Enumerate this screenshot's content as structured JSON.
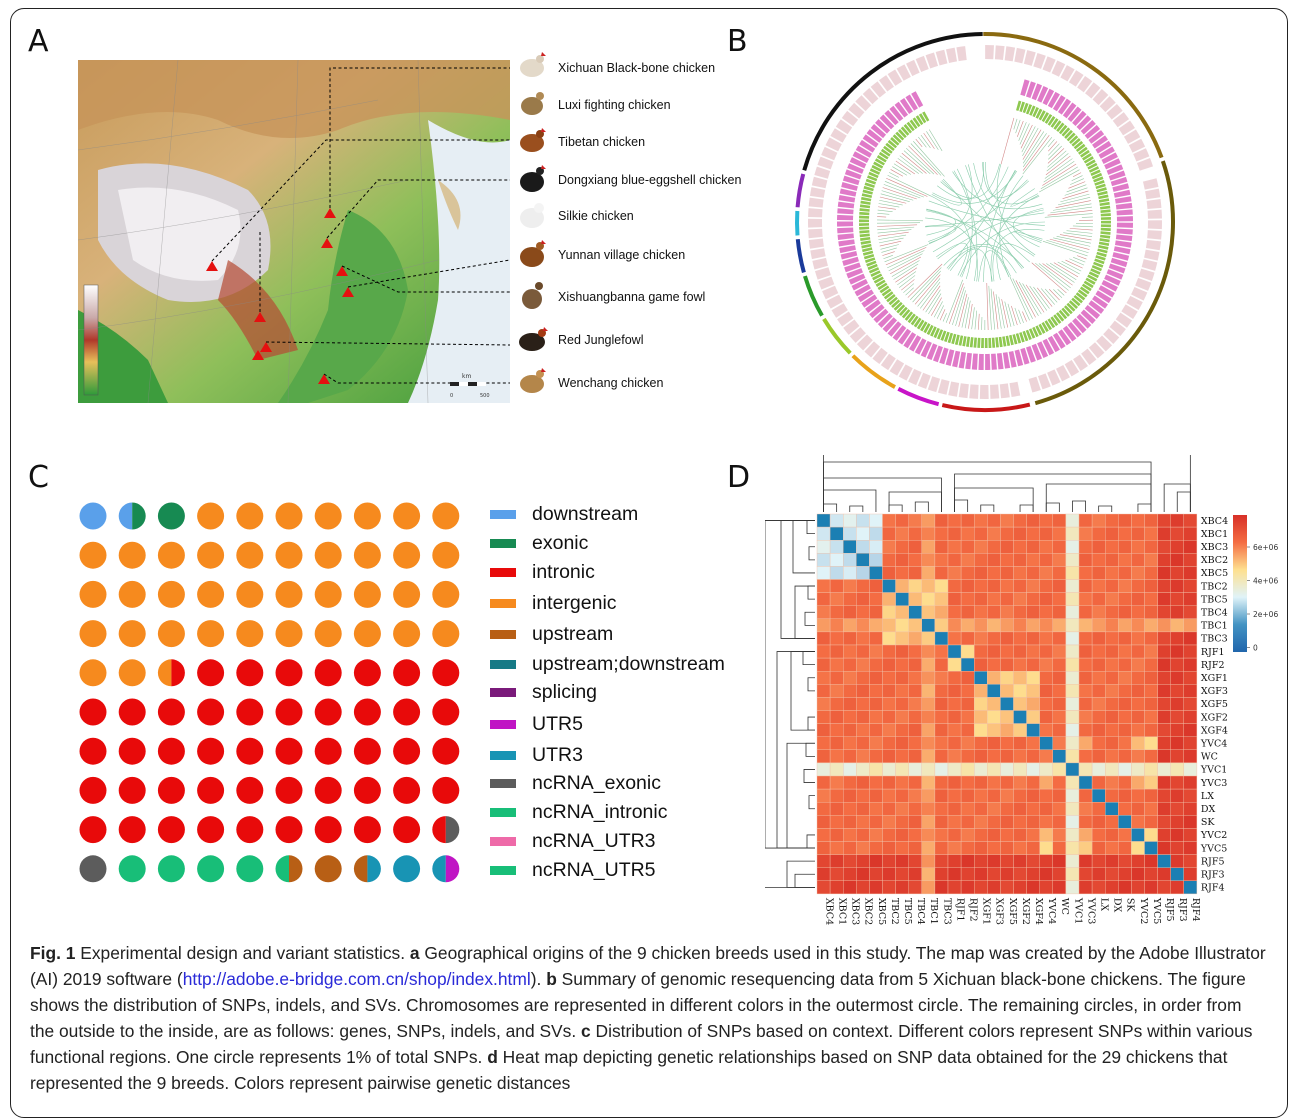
{
  "panels": {
    "a": "A",
    "b": "B",
    "c": "C",
    "d": "D"
  },
  "map": {
    "breeds": [
      "Xichuan Black-bone chicken",
      "Luxi fighting chicken",
      "Tibetan chicken",
      "Dongxiang blue-eggshell chicken",
      "Silkie chicken",
      "Yunnan village chicken",
      "Xishuangbanna game fowl",
      "Red Junglefowl",
      "Wenchang chicken"
    ],
    "scale_unit": "km",
    "scale_ticks": [
      "0",
      "500"
    ]
  },
  "waffle": {
    "legend": [
      {
        "label": "downstream",
        "color": "#5aa0ea"
      },
      {
        "label": "exonic",
        "color": "#178a52"
      },
      {
        "label": "intronic",
        "color": "#e80a0a"
      },
      {
        "label": "intergenic",
        "color": "#f68a1e"
      },
      {
        "label": "upstream",
        "color": "#b85f15"
      },
      {
        "label": "upstream;downstream",
        "color": "#167a86"
      },
      {
        "label": "splicing",
        "color": "#7a1a7a"
      },
      {
        "label": "UTR5",
        "color": "#c015c4"
      },
      {
        "label": "UTR3",
        "color": "#1894b4"
      },
      {
        "label": "ncRNA_exonic",
        "color": "#5c5c5c"
      },
      {
        "label": "ncRNA_intronic",
        "color": "#18be78"
      },
      {
        "label": "ncRNA_UTR3",
        "color": "#ee6aa8"
      },
      {
        "label": "ncRNA_UTR5",
        "color": "#18be78"
      }
    ]
  },
  "chart_data": {
    "type": "heatmap",
    "title": "",
    "rows": [
      "XBC4",
      "XBC1",
      "XBC3",
      "XBC2",
      "XBC5",
      "TBC2",
      "TBC5",
      "TBC4",
      "TBC1",
      "TBC3",
      "RJF1",
      "RJF2",
      "XGF1",
      "XGF3",
      "XGF5",
      "XGF2",
      "XGF4",
      "YVC4",
      "WC",
      "YVC1",
      "YVC3",
      "LX",
      "DX",
      "SK",
      "YVC2",
      "YVC5",
      "RJF5",
      "RJF3",
      "RJF4"
    ],
    "columns": [
      "XBC4",
      "XBC1",
      "XBC3",
      "XBC2",
      "XBC5",
      "TBC2",
      "TBC5",
      "TBC4",
      "TBC1",
      "TBC3",
      "RJF1",
      "RJF2",
      "XGF1",
      "XGF3",
      "XGF5",
      "XGF2",
      "XGF4",
      "YVC4",
      "WC",
      "YVC1",
      "YVC3",
      "LX",
      "DX",
      "SK",
      "YVC2",
      "YVC5",
      "RJF5",
      "RJF3",
      "RJF4"
    ],
    "colorbar": {
      "ticks": [
        "6e+06",
        "4e+06",
        "2e+06",
        "0"
      ],
      "colors": [
        "#d73027",
        "#f46d43",
        "#fee090",
        "#e0f3f8",
        "#4393c3",
        "#2166ac"
      ]
    }
  },
  "caption": {
    "fig": "Fig. 1",
    "title": " Experimental design and variant statistics. ",
    "a": "a",
    "a_text": " Geographical origins of the 9 chicken breeds used in this study. The map was created by the Adobe Illustrator (AI) 2019 software (",
    "link": "http://adobe.e-bridge.com.cn/shop/index.html",
    "a_end": "). ",
    "b": "b",
    "b_text": " Summary of genomic resequencing data from 5 Xichuan black-bone chickens. The figure shows the distribution of SNPs, indels, and SVs. Chromosomes are represented in different colors in the outermost circle. The remaining circles, in order from the outside to the inside, are as follows: genes, SNPs, indels, and SVs. ",
    "c": "c",
    "c_text": " Distribution of SNPs based on context. Different colors represent SNPs within various functional regions. One circle represents 1% of total SNPs. ",
    "d": "d",
    "d_text": " Heat map depicting genetic relationships based on SNP data obtained for the 29 chickens that represented the 9 breeds. Colors represent pairwise genetic distances"
  }
}
